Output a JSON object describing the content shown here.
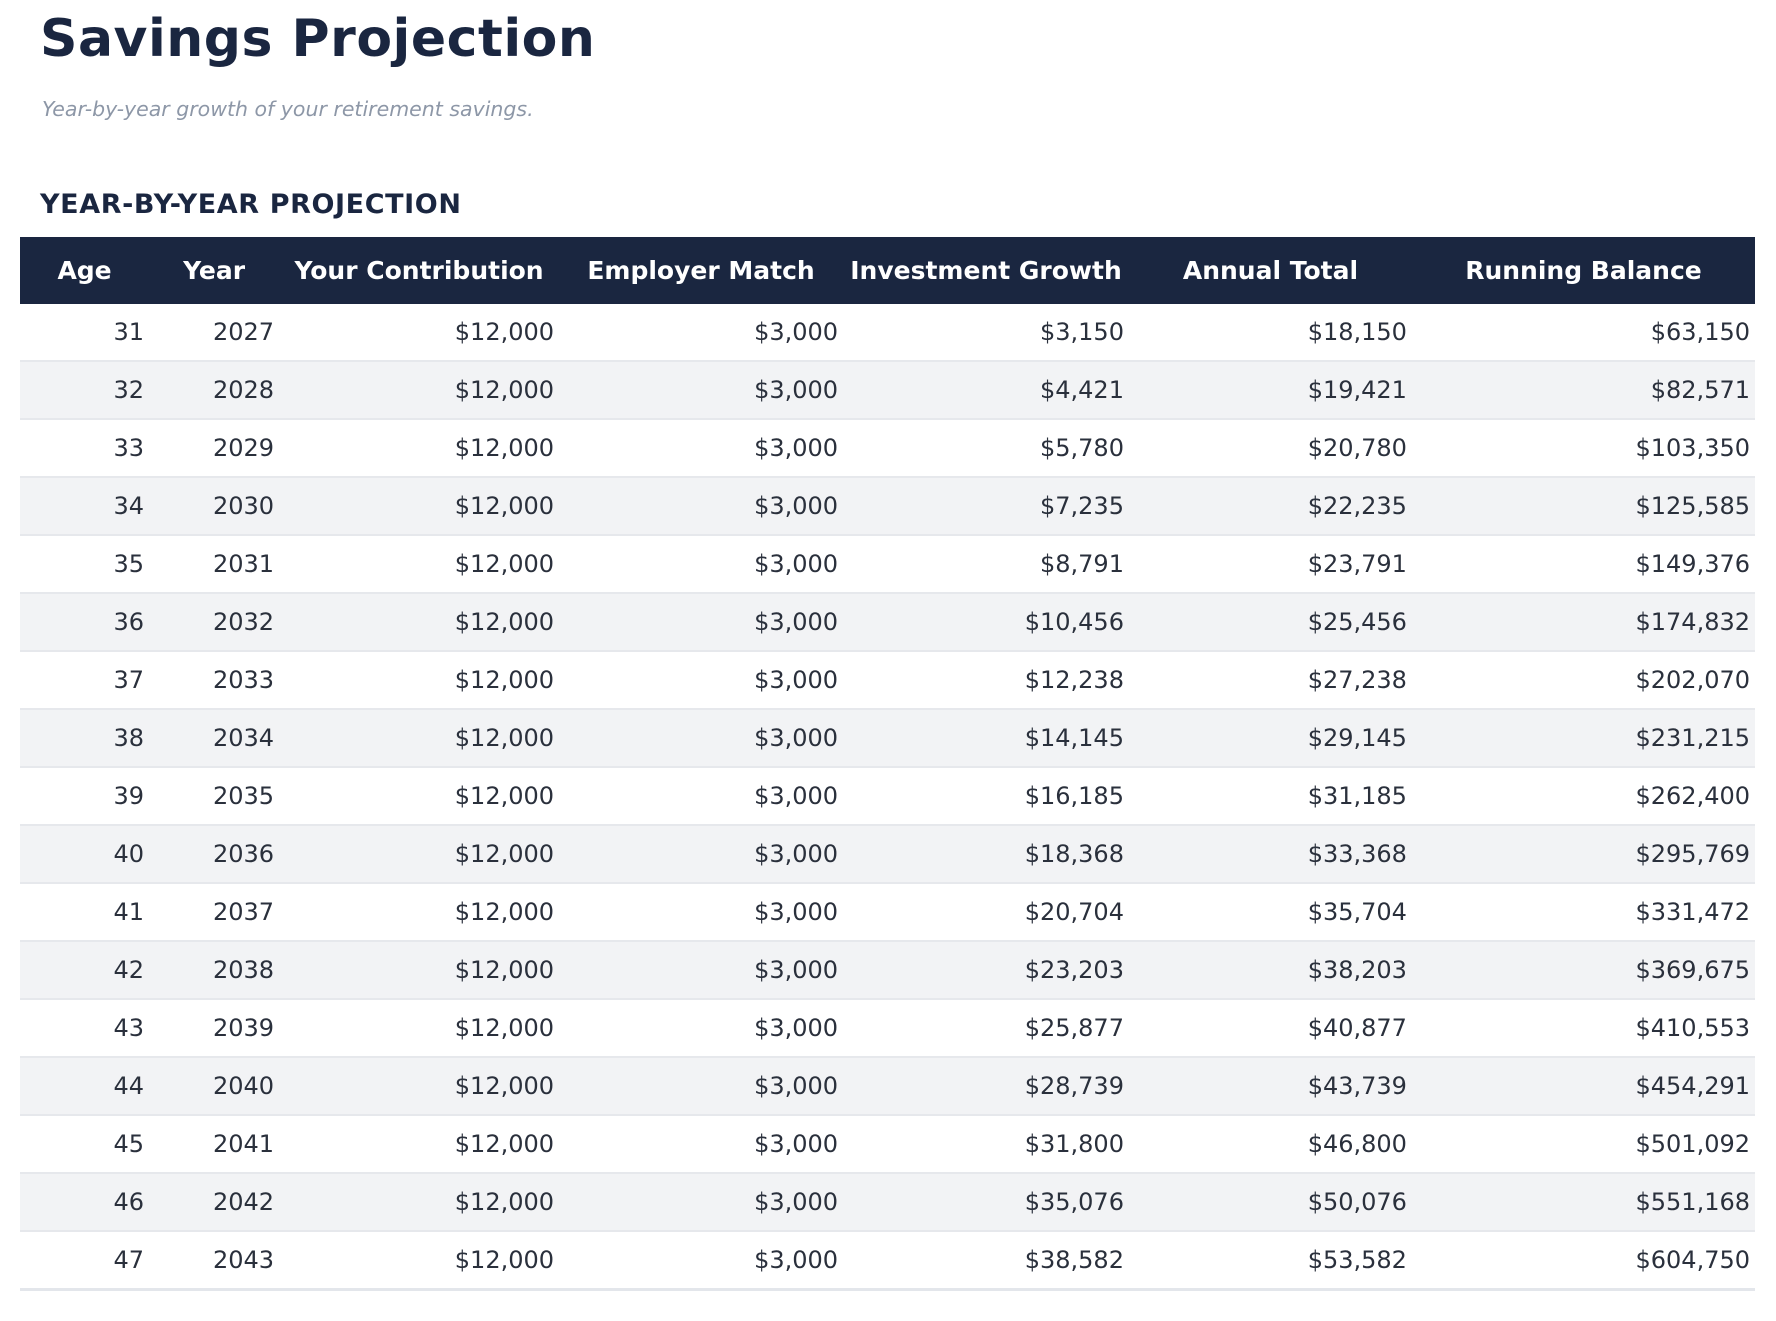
{
  "page": {
    "title": "Savings Projection",
    "subtitle": "Year-by-year growth of your retirement savings.",
    "section_heading": "YEAR-BY-YEAR PROJECTION"
  },
  "colors": {
    "navy_header_bg": "#1a2640",
    "header_text": "#ffffff",
    "title_text": "#1a2640",
    "body_text": "#2a303c",
    "subtitle_text": "#8d97a7",
    "row_alt_bg": "#f2f3f5",
    "row_border": "#e6e8ec"
  },
  "table": {
    "columns": [
      {
        "label": "Age",
        "width_pct": 7.44
      },
      {
        "label": "Year",
        "width_pct": 7.49
      },
      {
        "label": "Your Contribution",
        "width_pct": 16.14
      },
      {
        "label": "Employer Match",
        "width_pct": 16.37
      },
      {
        "label": "Investment Growth",
        "width_pct": 16.48
      },
      {
        "label": "Annual Total",
        "width_pct": 16.31
      },
      {
        "label": "Running Balance",
        "width_pct": 19.77
      }
    ],
    "rows": [
      [
        "31",
        "2027",
        "$12,000",
        "$3,000",
        "$3,150",
        "$18,150",
        "$63,150"
      ],
      [
        "32",
        "2028",
        "$12,000",
        "$3,000",
        "$4,421",
        "$19,421",
        "$82,571"
      ],
      [
        "33",
        "2029",
        "$12,000",
        "$3,000",
        "$5,780",
        "$20,780",
        "$103,350"
      ],
      [
        "34",
        "2030",
        "$12,000",
        "$3,000",
        "$7,235",
        "$22,235",
        "$125,585"
      ],
      [
        "35",
        "2031",
        "$12,000",
        "$3,000",
        "$8,791",
        "$23,791",
        "$149,376"
      ],
      [
        "36",
        "2032",
        "$12,000",
        "$3,000",
        "$10,456",
        "$25,456",
        "$174,832"
      ],
      [
        "37",
        "2033",
        "$12,000",
        "$3,000",
        "$12,238",
        "$27,238",
        "$202,070"
      ],
      [
        "38",
        "2034",
        "$12,000",
        "$3,000",
        "$14,145",
        "$29,145",
        "$231,215"
      ],
      [
        "39",
        "2035",
        "$12,000",
        "$3,000",
        "$16,185",
        "$31,185",
        "$262,400"
      ],
      [
        "40",
        "2036",
        "$12,000",
        "$3,000",
        "$18,368",
        "$33,368",
        "$295,769"
      ],
      [
        "41",
        "2037",
        "$12,000",
        "$3,000",
        "$20,704",
        "$35,704",
        "$331,472"
      ],
      [
        "42",
        "2038",
        "$12,000",
        "$3,000",
        "$23,203",
        "$38,203",
        "$369,675"
      ],
      [
        "43",
        "2039",
        "$12,000",
        "$3,000",
        "$25,877",
        "$40,877",
        "$410,553"
      ],
      [
        "44",
        "2040",
        "$12,000",
        "$3,000",
        "$28,739",
        "$43,739",
        "$454,291"
      ],
      [
        "45",
        "2041",
        "$12,000",
        "$3,000",
        "$31,800",
        "$46,800",
        "$501,092"
      ],
      [
        "46",
        "2042",
        "$12,000",
        "$3,000",
        "$35,076",
        "$50,076",
        "$551,168"
      ],
      [
        "47",
        "2043",
        "$12,000",
        "$3,000",
        "$38,582",
        "$53,582",
        "$604,750"
      ]
    ]
  }
}
